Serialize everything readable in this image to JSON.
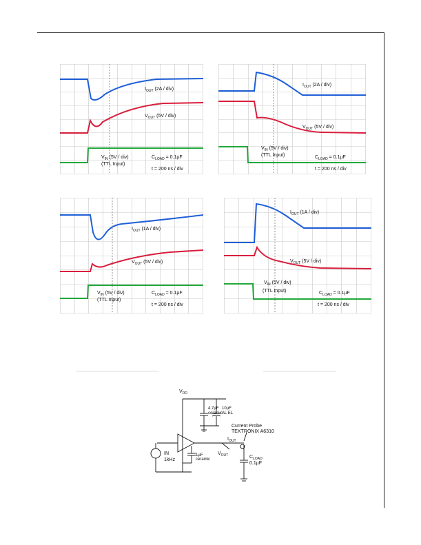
{
  "scopes": [
    {
      "id": "top-left",
      "labels": {
        "iout": [
          "I",
          "OUT",
          " (2A / div)"
        ],
        "vout": [
          "V",
          "OUT",
          " (5V / div)"
        ],
        "vin": [
          "V",
          "IN",
          " (5V / div)"
        ],
        "ttl": "(TTL Input)",
        "cload": [
          "C",
          "LOAD",
          " = 0.1µF"
        ],
        "time": "t = 200 ns / div"
      }
    },
    {
      "id": "top-right",
      "labels": {
        "iout": [
          "I",
          "OUT",
          " (2A / div)"
        ],
        "vout": [
          "V",
          "OUT",
          " (5V / div)"
        ],
        "vin": [
          "V",
          "IN",
          " (5V / div)"
        ],
        "ttl": "(TTL Input)",
        "cload": [
          "C",
          "LOAD",
          " = 0.1µF"
        ],
        "time": "t = 200 ns / div"
      }
    },
    {
      "id": "bottom-left",
      "labels": {
        "iout": [
          "I",
          "OUT",
          " (1A / div)"
        ],
        "vout": [
          "V",
          "OUT",
          " (5V / div)"
        ],
        "vin": [
          "V",
          "IN",
          " (5V / div)"
        ],
        "ttl": "(TTL Input)",
        "cload": [
          "C",
          "LOAD",
          " = 0.1µF"
        ],
        "time": "t = 200 ns / div"
      }
    },
    {
      "id": "bottom-right",
      "labels": {
        "iout": [
          "I",
          "OUT",
          " (1A / div)"
        ],
        "vout": [
          "V",
          "OUT",
          " (5V / div)"
        ],
        "vin": [
          "V",
          "IN",
          " (5V / div)"
        ],
        "ttl": "(TTL Input)",
        "cload": [
          "C",
          "LOAD",
          " = 0.1µF"
        ],
        "time": "t = 200 ns / div"
      }
    }
  ],
  "trace_colors": {
    "iout": "#1e5fd8",
    "vout": "#d81e3c",
    "vin": "#22a83a",
    "grid": "#c9c9c9"
  },
  "schematic": {
    "vdd": [
      "V",
      "DD"
    ],
    "cap1": [
      "4.7µF",
      "ceramic"
    ],
    "cap2": [
      "10µF",
      "AL EL"
    ],
    "probe": [
      "Current Probe",
      "TEKTRONIX A6310"
    ],
    "in": [
      "IN",
      "1kHz"
    ],
    "bypass": [
      "1µF",
      "ceramic"
    ],
    "iout": [
      "I",
      "OUT"
    ],
    "vout": [
      "V",
      "OUT"
    ],
    "cload": [
      "C",
      "LOAD"
    ],
    "cload_val": "0.1µF"
  }
}
